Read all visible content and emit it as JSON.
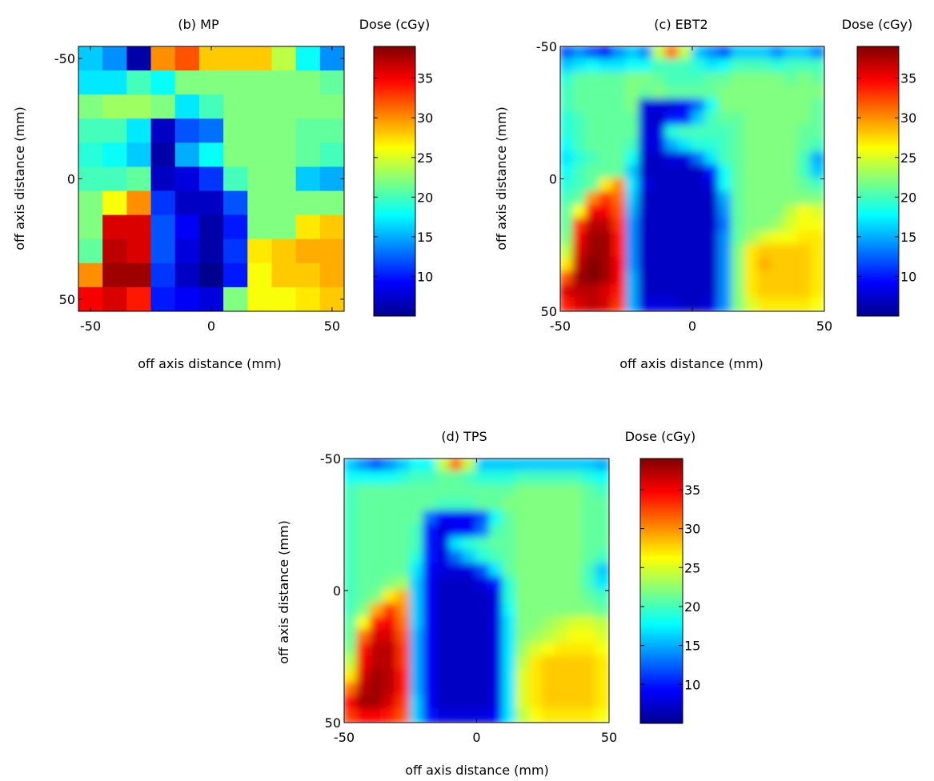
{
  "colormap": [
    "#00008f",
    "#0000ff",
    "#0080ff",
    "#00ffff",
    "#80ff80",
    "#ffff00",
    "#ff8000",
    "#ff0000",
    "#800000"
  ],
  "colorbar": {
    "label": "Dose (cGy)",
    "min": 5,
    "max": 39,
    "ticks": [
      10,
      15,
      20,
      25,
      30,
      35
    ]
  },
  "chart_data": [
    {
      "id": "mp",
      "type": "heatmap",
      "title": "(b) MP",
      "xlabel": "off axis distance (mm)",
      "ylabel": "off axis distance (mm)",
      "xlim": [
        -55,
        55
      ],
      "ylim": [
        -55,
        55
      ],
      "y_reversed": true,
      "x_ticks": [
        -50,
        0,
        50
      ],
      "y_ticks": [
        -50,
        0,
        50
      ],
      "grid": false,
      "x_centers": [
        -50,
        -40,
        -30,
        -20,
        -10,
        0,
        10,
        20,
        30,
        40,
        50
      ],
      "y_centers": [
        -50,
        -40,
        -30,
        -20,
        -10,
        0,
        10,
        20,
        30,
        40,
        50
      ],
      "values": [
        [
          16,
          14,
          6,
          30,
          32,
          28,
          28,
          28,
          24,
          18,
          14
        ],
        [
          17,
          17,
          20,
          18,
          22,
          22,
          22,
          22,
          22,
          22,
          21
        ],
        [
          22,
          23,
          23,
          22,
          17,
          20,
          22,
          22,
          22,
          22,
          22
        ],
        [
          20,
          20,
          17,
          7,
          12,
          13,
          22,
          22,
          22,
          21,
          21
        ],
        [
          19,
          18,
          16,
          6,
          15,
          18,
          22,
          22,
          22,
          21,
          20
        ],
        [
          20,
          20,
          21,
          7,
          8,
          11,
          20,
          22,
          22,
          16,
          15
        ],
        [
          22,
          26,
          30,
          11,
          7,
          7,
          12,
          22,
          22,
          22,
          22
        ],
        [
          22,
          36,
          36,
          12,
          9,
          6,
          10,
          22,
          22,
          27,
          28
        ],
        [
          21,
          37,
          36,
          12,
          8,
          6,
          11,
          27,
          28,
          29,
          29
        ],
        [
          30,
          38,
          38,
          11,
          7,
          5,
          10,
          26,
          28,
          28,
          29
        ],
        [
          35,
          36,
          34,
          10,
          9,
          8,
          22,
          26,
          26,
          27,
          28
        ]
      ]
    },
    {
      "id": "ebt2",
      "type": "heatmap",
      "title": "(c) EBT2",
      "xlabel": "off axis distance (mm)",
      "ylabel": "off axis distance (mm)",
      "xlim": [
        -50,
        50
      ],
      "ylim": [
        -50,
        50
      ],
      "y_reversed": true,
      "x_ticks": [
        -50,
        0,
        50
      ],
      "y_ticks": [
        -50,
        0,
        50
      ],
      "grid": false,
      "x_centers": [
        -47.5,
        -42.5,
        -37.5,
        -32.5,
        -27.5,
        -22.5,
        -17.5,
        -12.5,
        -7.5,
        -2.5,
        2.5,
        7.5,
        12.5,
        17.5,
        22.5,
        27.5,
        32.5,
        37.5,
        42.5,
        47.5
      ],
      "y_centers": [
        -47.5,
        -42.5,
        -37.5,
        -32.5,
        -27.5,
        -22.5,
        -17.5,
        -12.5,
        -7.5,
        -2.5,
        2.5,
        7.5,
        12.5,
        17.5,
        22.5,
        27.5,
        32.5,
        37.5,
        42.5,
        47.5
      ],
      "values": [
        [
          12,
          14,
          12,
          9,
          14,
          16,
          14,
          24,
          31,
          24,
          16,
          14,
          12,
          16,
          16,
          16,
          14,
          16,
          16,
          14
        ],
        [
          16,
          17,
          18,
          17,
          17,
          18,
          18,
          20,
          20,
          20,
          19,
          17,
          18,
          20,
          20,
          20,
          19,
          20,
          20,
          20
        ],
        [
          19,
          21,
          21,
          21,
          21,
          22,
          22,
          21,
          20,
          20,
          20,
          21,
          21,
          22,
          22,
          22,
          22,
          21,
          22,
          21
        ],
        [
          20,
          21,
          21,
          21,
          21,
          22,
          21,
          22,
          21,
          21,
          21,
          21,
          22,
          22,
          22,
          22,
          22,
          22,
          22,
          22
        ],
        [
          20,
          21,
          21,
          21,
          21,
          22,
          8,
          8,
          8,
          9,
          13,
          18,
          22,
          22,
          22,
          22,
          22,
          22,
          22,
          21
        ],
        [
          19,
          20,
          21,
          21,
          21,
          21,
          8,
          7,
          10,
          10,
          16,
          20,
          21,
          21,
          22,
          22,
          22,
          22,
          22,
          21
        ],
        [
          19,
          20,
          21,
          21,
          21,
          21,
          8,
          8,
          19,
          20,
          20,
          20,
          20,
          21,
          22,
          22,
          22,
          22,
          21,
          21
        ],
        [
          18,
          20,
          21,
          21,
          21,
          20,
          8,
          8,
          15,
          17,
          19,
          19,
          20,
          21,
          22,
          22,
          22,
          22,
          21,
          20
        ],
        [
          17,
          19,
          20,
          21,
          21,
          18,
          7,
          7,
          8,
          8,
          13,
          17,
          20,
          21,
          22,
          22,
          22,
          22,
          20,
          15
        ],
        [
          18,
          20,
          21,
          21,
          21,
          16,
          7,
          7,
          7,
          7,
          7,
          10,
          18,
          21,
          22,
          22,
          22,
          22,
          20,
          16
        ],
        [
          19,
          20,
          21,
          27,
          30,
          17,
          8,
          7,
          7,
          7,
          7,
          8,
          18,
          21,
          22,
          22,
          22,
          22,
          21,
          20
        ],
        [
          20,
          21,
          30,
          33,
          31,
          16,
          7,
          7,
          7,
          7,
          7,
          7,
          15,
          21,
          22,
          22,
          22,
          22,
          22,
          22
        ],
        [
          21,
          26,
          35,
          35,
          32,
          15,
          7,
          7,
          7,
          7,
          7,
          7,
          14,
          21,
          22,
          22,
          22,
          24,
          26,
          25
        ],
        [
          21,
          33,
          37,
          37,
          33,
          14,
          7,
          7,
          7,
          7,
          7,
          7,
          13,
          21,
          22,
          22,
          23,
          25,
          26,
          26
        ],
        [
          22,
          35,
          38,
          38,
          34,
          14,
          7,
          7,
          7,
          7,
          7,
          7,
          14,
          21,
          23,
          25,
          26,
          26,
          27,
          27
        ],
        [
          24,
          36,
          38,
          38,
          34,
          14,
          7,
          7,
          7,
          7,
          7,
          7,
          14,
          22,
          27,
          28,
          28,
          28,
          28,
          27
        ],
        [
          27,
          37,
          39,
          38,
          35,
          14,
          7,
          7,
          7,
          7,
          7,
          7,
          14,
          22,
          27,
          29,
          28,
          28,
          28,
          27
        ],
        [
          32,
          38,
          39,
          38,
          35,
          15,
          7,
          7,
          7,
          7,
          7,
          7,
          14,
          22,
          27,
          28,
          28,
          28,
          28,
          27
        ],
        [
          36,
          37,
          37,
          36,
          34,
          15,
          7,
          7,
          7,
          7,
          7,
          7,
          14,
          22,
          27,
          28,
          28,
          28,
          28,
          27
        ],
        [
          34,
          36,
          37,
          36,
          33,
          15,
          8,
          8,
          8,
          7,
          7,
          8,
          14,
          22,
          25,
          27,
          27,
          27,
          27,
          26
        ]
      ]
    },
    {
      "id": "tps",
      "type": "heatmap",
      "title": "(d) TPS",
      "xlabel": "off axis distance (mm)",
      "ylabel": "off axis distance (mm)",
      "xlim": [
        -50,
        50
      ],
      "ylim": [
        -50,
        50
      ],
      "y_reversed": true,
      "x_ticks": [
        -50,
        0,
        50
      ],
      "y_ticks": [
        -50,
        0,
        50
      ],
      "grid": false,
      "x_centers": [
        -47.5,
        -42.5,
        -37.5,
        -32.5,
        -27.5,
        -22.5,
        -17.5,
        -12.5,
        -7.5,
        -2.5,
        2.5,
        7.5,
        12.5,
        17.5,
        22.5,
        27.5,
        32.5,
        37.5,
        42.5,
        47.5
      ],
      "y_centers": [
        -47.5,
        -42.5,
        -37.5,
        -32.5,
        -27.5,
        -22.5,
        -17.5,
        -12.5,
        -7.5,
        -2.5,
        2.5,
        7.5,
        12.5,
        17.5,
        22.5,
        27.5,
        32.5,
        37.5,
        42.5,
        47.5
      ],
      "values": [
        [
          16,
          14,
          12,
          14,
          16,
          18,
          18,
          24,
          31,
          24,
          16,
          16,
          16,
          16,
          16,
          16,
          16,
          16,
          16,
          15
        ],
        [
          18,
          18,
          18,
          18,
          19,
          20,
          20,
          21,
          21,
          20,
          19,
          19,
          19,
          20,
          20,
          20,
          20,
          20,
          19,
          18
        ],
        [
          20,
          21,
          21,
          21,
          21,
          21,
          21,
          21,
          21,
          21,
          21,
          21,
          21,
          22,
          22,
          22,
          22,
          22,
          21,
          20
        ],
        [
          20,
          21,
          21,
          21,
          21,
          21,
          21,
          20,
          20,
          20,
          21,
          21,
          22,
          22,
          22,
          22,
          22,
          22,
          21,
          21
        ],
        [
          20,
          21,
          21,
          21,
          21,
          21,
          13,
          9,
          9,
          9,
          12,
          18,
          21,
          22,
          22,
          22,
          22,
          22,
          21,
          21
        ],
        [
          20,
          21,
          21,
          21,
          21,
          20,
          10,
          8,
          9,
          9,
          13,
          20,
          21,
          22,
          22,
          22,
          22,
          22,
          21,
          21
        ],
        [
          20,
          21,
          21,
          21,
          21,
          20,
          10,
          8,
          17,
          19,
          20,
          21,
          21,
          22,
          22,
          22,
          22,
          22,
          21,
          21
        ],
        [
          20,
          21,
          21,
          21,
          21,
          19,
          10,
          8,
          13,
          16,
          19,
          20,
          21,
          22,
          22,
          22,
          22,
          22,
          21,
          20
        ],
        [
          20,
          21,
          21,
          21,
          21,
          17,
          9,
          8,
          8,
          8,
          12,
          17,
          21,
          22,
          22,
          22,
          22,
          22,
          20,
          16
        ],
        [
          20,
          21,
          21,
          22,
          23,
          16,
          9,
          7,
          7,
          7,
          8,
          10,
          19,
          22,
          22,
          22,
          22,
          22,
          20,
          17
        ],
        [
          20,
          21,
          22,
          27,
          29,
          16,
          9,
          7,
          7,
          7,
          7,
          8,
          19,
          22,
          22,
          22,
          22,
          22,
          21,
          20
        ],
        [
          20,
          22,
          29,
          33,
          30,
          16,
          9,
          7,
          7,
          7,
          7,
          8,
          18,
          22,
          22,
          22,
          22,
          22,
          22,
          21
        ],
        [
          21,
          26,
          34,
          35,
          31,
          16,
          9,
          7,
          7,
          7,
          7,
          8,
          17,
          22,
          22,
          23,
          24,
          25,
          25,
          24
        ],
        [
          21,
          31,
          36,
          36,
          32,
          15,
          9,
          7,
          7,
          7,
          7,
          8,
          17,
          22,
          23,
          24,
          25,
          26,
          26,
          25
        ],
        [
          22,
          34,
          37,
          37,
          33,
          15,
          9,
          7,
          7,
          7,
          7,
          8,
          17,
          23,
          25,
          26,
          27,
          27,
          27,
          26
        ],
        [
          24,
          35,
          37,
          37,
          33,
          15,
          9,
          7,
          7,
          7,
          7,
          8,
          17,
          24,
          27,
          28,
          28,
          28,
          28,
          27
        ],
        [
          27,
          36,
          38,
          37,
          34,
          15,
          9,
          7,
          7,
          7,
          7,
          8,
          17,
          25,
          27,
          28,
          28,
          28,
          28,
          27
        ],
        [
          31,
          37,
          38,
          37,
          34,
          15,
          9,
          7,
          7,
          7,
          7,
          8,
          17,
          25,
          27,
          28,
          28,
          28,
          28,
          27
        ],
        [
          35,
          38,
          38,
          36,
          33,
          16,
          9,
          7,
          7,
          7,
          7,
          8,
          17,
          25,
          27,
          28,
          28,
          28,
          28,
          27
        ],
        [
          33,
          35,
          35,
          34,
          32,
          16,
          10,
          8,
          8,
          8,
          8,
          9,
          17,
          24,
          26,
          27,
          27,
          27,
          27,
          26
        ]
      ]
    }
  ]
}
